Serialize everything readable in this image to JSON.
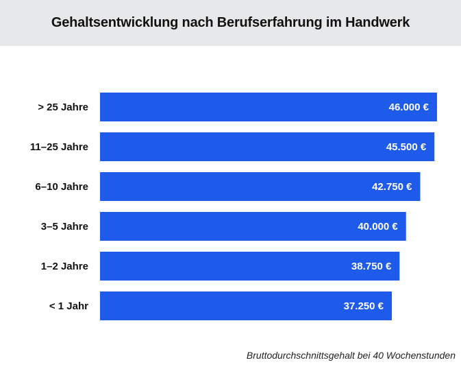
{
  "colors": {
    "bar": "#1f5bea",
    "header_bg": "#e7e8ea"
  },
  "chart_data": {
    "type": "bar",
    "orientation": "horizontal",
    "title": "Gehaltsentwicklung nach Berufserfahrung im Handwerk",
    "categories": [
      "> 25 Jahre",
      "11–25 Jahre",
      "6–10 Jahre",
      "3–5 Jahre",
      "1–2 Jahre",
      "< 1 Jahr"
    ],
    "values": [
      46000,
      45500,
      42750,
      40000,
      38750,
      37250
    ],
    "value_labels": [
      "46.000 €",
      "45.500 €",
      "42.750 €",
      "40.000 €",
      "38.750 €",
      "37.250 €"
    ],
    "xlabel": "",
    "ylabel": "",
    "grid": false,
    "note": "Bruttodurchschnittsgehalt bei 40 Wochenstunden"
  }
}
